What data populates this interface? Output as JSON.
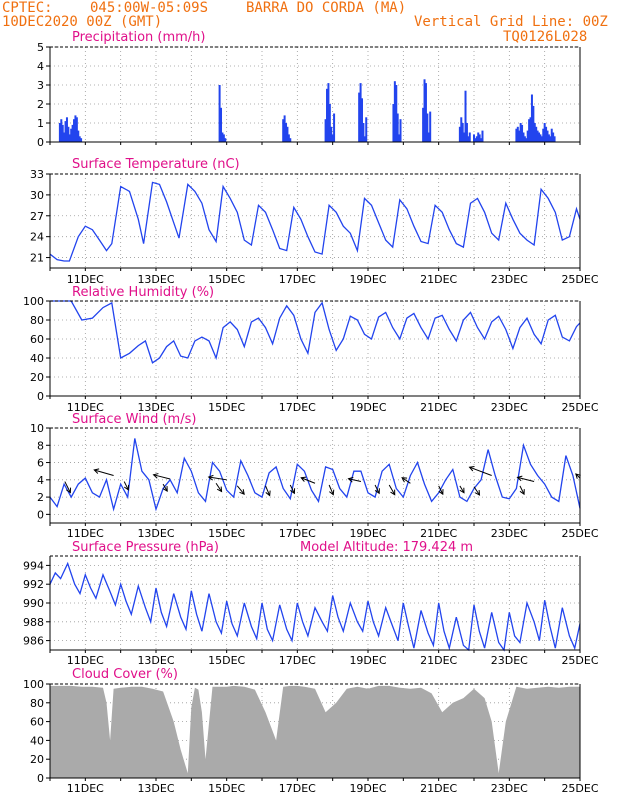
{
  "header": {
    "source": "CPTEC:",
    "coords": "045:00W-05:09S",
    "location": "BARRA DO CORDA (MA)",
    "date": "10DEC2020 00Z (GMT)",
    "gridline": "Vertical Grid Line: 00Z",
    "code": "TQ0126L028"
  },
  "colors": {
    "header": "#f07010",
    "title": "#e0108a",
    "series": "#2244ee",
    "cloud": "#aaaaaa",
    "wind_arrow": "#000000",
    "wind_start": "#f07010"
  },
  "chart_data": [
    {
      "type": "bar",
      "title": "Precipitation (mm/h)",
      "x_unit": "days since 10DEC2020 00Z",
      "xticks": [
        "11DEC",
        "13DEC",
        "15DEC",
        "17DEC",
        "19DEC",
        "21DEC",
        "23DEC",
        "25DEC"
      ],
      "ylim": [
        0,
        5
      ],
      "yticks": [
        0,
        1,
        2,
        3,
        4,
        5
      ],
      "grid": true,
      "x": [
        0.28,
        0.32,
        0.36,
        0.4,
        0.44,
        0.48,
        0.52,
        0.56,
        0.6,
        0.64,
        0.68,
        0.72,
        0.76,
        0.8,
        0.84,
        0.88,
        4.8,
        4.84,
        4.88,
        4.92,
        4.96,
        6.6,
        6.64,
        6.68,
        6.72,
        6.76,
        6.8,
        7.8,
        7.84,
        7.88,
        7.92,
        7.96,
        8.0,
        8.04,
        8.75,
        8.79,
        8.83,
        8.87,
        8.91,
        8.95,
        9.72,
        9.76,
        9.8,
        9.84,
        9.88,
        9.92,
        10.56,
        10.6,
        10.64,
        10.68,
        10.72,
        10.76,
        11.6,
        11.64,
        11.68,
        11.72,
        11.76,
        11.8,
        11.84,
        11.88,
        12.0,
        12.04,
        12.08,
        12.12,
        12.16,
        12.2,
        12.24,
        13.2,
        13.24,
        13.28,
        13.32,
        13.36,
        13.4,
        13.44,
        13.48,
        13.52,
        13.56,
        13.6,
        13.64,
        13.68,
        13.72,
        13.76,
        13.8,
        13.84,
        13.88,
        13.92,
        13.96,
        14.0,
        14.04,
        14.08,
        14.12,
        14.16,
        14.2,
        14.24,
        14.28
      ],
      "values": [
        1.0,
        1.2,
        0.9,
        0.5,
        1.1,
        1.3,
        0.8,
        0.4,
        0.7,
        0.9,
        1.2,
        1.4,
        1.3,
        0.6,
        0.3,
        0.2,
        3.0,
        1.8,
        0.5,
        0.4,
        0.2,
        1.2,
        1.4,
        1.0,
        0.8,
        0.4,
        0.2,
        1.2,
        2.8,
        3.1,
        2.0,
        0.8,
        0.4,
        1.5,
        2.6,
        3.1,
        2.3,
        1.0,
        0.3,
        1.3,
        2.0,
        3.2,
        3.0,
        1.5,
        0.4,
        1.2,
        1.8,
        3.3,
        3.1,
        1.5,
        0.5,
        1.6,
        0.8,
        1.3,
        1.0,
        0.5,
        2.7,
        1.0,
        0.3,
        0.5,
        0.4,
        0.2,
        0.3,
        0.5,
        0.4,
        0.2,
        0.6,
        0.7,
        0.8,
        0.6,
        1.0,
        0.9,
        0.5,
        0.3,
        0.2,
        0.6,
        1.2,
        1.3,
        2.5,
        1.9,
        1.0,
        0.8,
        0.6,
        0.5,
        0.4,
        0.3,
        0.7,
        1.0,
        0.8,
        0.6,
        0.4,
        0.3,
        0.7,
        0.5,
        0.3
      ]
    },
    {
      "type": "line",
      "title": "Surface Temperature (nC)",
      "x_unit": "days since 10DEC2020 00Z",
      "xticks": [
        "11DEC",
        "13DEC",
        "15DEC",
        "17DEC",
        "19DEC",
        "21DEC",
        "23DEC",
        "25DEC"
      ],
      "ylim": [
        19.5,
        33
      ],
      "yticks": [
        21,
        24,
        27,
        30,
        33
      ],
      "grid": true,
      "x": [
        0.0,
        0.2,
        0.4,
        0.55,
        0.8,
        1.0,
        1.2,
        1.4,
        1.6,
        1.75,
        2.0,
        2.25,
        2.5,
        2.65,
        2.9,
        3.1,
        3.3,
        3.5,
        3.65,
        3.9,
        4.1,
        4.3,
        4.5,
        4.7,
        4.9,
        5.1,
        5.3,
        5.5,
        5.7,
        5.9,
        6.1,
        6.3,
        6.5,
        6.7,
        6.9,
        7.1,
        7.3,
        7.5,
        7.7,
        7.9,
        8.1,
        8.3,
        8.5,
        8.7,
        8.9,
        9.1,
        9.3,
        9.5,
        9.7,
        9.9,
        10.1,
        10.3,
        10.5,
        10.7,
        10.9,
        11.1,
        11.3,
        11.5,
        11.7,
        11.9,
        12.1,
        12.3,
        12.5,
        12.7,
        12.9,
        13.1,
        13.3,
        13.5,
        13.7,
        13.9,
        14.1,
        14.3,
        14.5,
        14.7,
        14.9,
        15.0
      ],
      "values": [
        21.5,
        20.7,
        20.5,
        20.5,
        24.0,
        25.5,
        25.0,
        23.5,
        22.0,
        23.0,
        31.2,
        30.5,
        26.5,
        23.0,
        31.8,
        31.5,
        29.0,
        26.0,
        23.8,
        31.5,
        30.5,
        28.8,
        25.0,
        23.3,
        31.2,
        29.5,
        27.5,
        23.5,
        22.8,
        28.5,
        27.5,
        25.0,
        22.3,
        22.0,
        28.2,
        26.5,
        24.0,
        21.8,
        21.5,
        28.5,
        27.5,
        25.5,
        24.5,
        22.0,
        29.5,
        28.5,
        26.0,
        23.5,
        22.5,
        29.3,
        28.0,
        25.5,
        23.3,
        23.0,
        28.5,
        27.5,
        25.0,
        23.0,
        22.5,
        28.8,
        29.5,
        27.5,
        24.5,
        23.5,
        28.8,
        26.5,
        24.5,
        23.5,
        22.8,
        30.8,
        29.5,
        27.5,
        23.5,
        24.0,
        28.0,
        26.5
      ]
    },
    {
      "type": "line",
      "title": "Relative Humidity (%)",
      "x_unit": "days since 10DEC2020 00Z",
      "xticks": [
        "11DEC",
        "13DEC",
        "15DEC",
        "17DEC",
        "19DEC",
        "21DEC",
        "23DEC",
        "25DEC"
      ],
      "ylim": [
        0,
        100
      ],
      "yticks": [
        0,
        20,
        40,
        60,
        80,
        100
      ],
      "grid": true,
      "x": [
        0.0,
        0.3,
        0.6,
        0.9,
        1.2,
        1.5,
        1.75,
        2.0,
        2.25,
        2.5,
        2.7,
        2.9,
        3.1,
        3.3,
        3.5,
        3.7,
        3.9,
        4.1,
        4.3,
        4.5,
        4.7,
        4.9,
        5.1,
        5.3,
        5.5,
        5.7,
        5.9,
        6.1,
        6.3,
        6.5,
        6.7,
        6.9,
        7.1,
        7.3,
        7.5,
        7.7,
        7.9,
        8.1,
        8.3,
        8.5,
        8.7,
        8.9,
        9.1,
        9.3,
        9.5,
        9.7,
        9.9,
        10.1,
        10.3,
        10.5,
        10.7,
        10.9,
        11.1,
        11.3,
        11.5,
        11.7,
        11.9,
        12.1,
        12.3,
        12.5,
        12.7,
        12.9,
        13.1,
        13.3,
        13.5,
        13.7,
        13.9,
        14.1,
        14.3,
        14.5,
        14.7,
        14.9,
        15.0
      ],
      "values": [
        100,
        100,
        100,
        80,
        82,
        93,
        98,
        40,
        45,
        53,
        58,
        35,
        40,
        52,
        58,
        42,
        40,
        58,
        62,
        58,
        40,
        72,
        78,
        70,
        52,
        78,
        82,
        72,
        55,
        82,
        95,
        85,
        60,
        45,
        88,
        98,
        70,
        48,
        60,
        84,
        80,
        65,
        60,
        83,
        88,
        72,
        60,
        82,
        87,
        72,
        60,
        82,
        85,
        70,
        58,
        80,
        88,
        72,
        60,
        78,
        84,
        70,
        50,
        72,
        82,
        65,
        55,
        80,
        85,
        62,
        58,
        73,
        77
      ]
    },
    {
      "type": "line",
      "title": "Surface Wind (m/s)",
      "x_unit": "days since 10DEC2020 00Z",
      "xticks": [
        "11DEC",
        "13DEC",
        "15DEC",
        "17DEC",
        "19DEC",
        "21DEC",
        "23DEC",
        "25DEC"
      ],
      "ylim": [
        -1,
        10
      ],
      "yticks": [
        0,
        2,
        4,
        6,
        8,
        10
      ],
      "grid": true,
      "x": [
        0.0,
        0.2,
        0.4,
        0.6,
        0.8,
        1.0,
        1.2,
        1.4,
        1.6,
        1.8,
        2.0,
        2.2,
        2.4,
        2.6,
        2.8,
        3.0,
        3.2,
        3.4,
        3.6,
        3.8,
        4.0,
        4.2,
        4.4,
        4.6,
        4.8,
        5.0,
        5.2,
        5.4,
        5.6,
        5.8,
        6.0,
        6.2,
        6.4,
        6.6,
        6.8,
        7.0,
        7.2,
        7.4,
        7.6,
        7.8,
        8.0,
        8.2,
        8.4,
        8.6,
        8.8,
        9.0,
        9.2,
        9.4,
        9.6,
        9.8,
        10.0,
        10.2,
        10.4,
        10.6,
        10.8,
        11.0,
        11.2,
        11.4,
        11.6,
        11.8,
        12.0,
        12.2,
        12.4,
        12.6,
        12.8,
        13.0,
        13.2,
        13.4,
        13.6,
        13.8,
        14.0,
        14.2,
        14.4,
        14.6,
        14.8,
        15.0
      ],
      "values": [
        2.0,
        0.9,
        3.5,
        2.0,
        3.5,
        4.2,
        2.5,
        2.0,
        4.0,
        0.6,
        3.5,
        2.0,
        8.8,
        5.0,
        4.0,
        0.6,
        3.0,
        4.0,
        2.5,
        6.5,
        5.0,
        2.5,
        1.5,
        6.0,
        5.0,
        2.8,
        2.0,
        6.2,
        4.5,
        2.5,
        2.0,
        4.8,
        5.5,
        3.0,
        1.8,
        5.8,
        5.0,
        2.8,
        1.5,
        5.5,
        5.2,
        3.0,
        2.0,
        5.0,
        5.0,
        2.5,
        2.0,
        5.0,
        5.8,
        3.0,
        2.0,
        4.5,
        6.0,
        3.5,
        1.5,
        2.5,
        4.0,
        5.2,
        2.0,
        1.5,
        3.0,
        4.0,
        7.5,
        4.5,
        2.0,
        1.8,
        3.0,
        8.0,
        5.8,
        4.5,
        3.5,
        2.0,
        1.5,
        6.8,
        4.5,
        0.7
      ],
      "arrows": [
        {
          "x": 0.42,
          "y": 3.8,
          "u": 0.4,
          "v": -0.8
        },
        {
          "x": 1.8,
          "y": 4.5,
          "u": -1.4,
          "v": 0.4
        },
        {
          "x": 2.1,
          "y": 3.8,
          "u": 0.3,
          "v": -0.6
        },
        {
          "x": 3.4,
          "y": 4.1,
          "u": -1.2,
          "v": 0.3
        },
        {
          "x": 3.2,
          "y": 3.5,
          "u": 0.3,
          "v": -0.5
        },
        {
          "x": 5.0,
          "y": 4.0,
          "u": -1.3,
          "v": 0.2
        },
        {
          "x": 4.7,
          "y": 3.6,
          "u": 0.4,
          "v": -0.6
        },
        {
          "x": 5.3,
          "y": 3.3,
          "u": 0.5,
          "v": -0.6
        },
        {
          "x": 6.1,
          "y": 3.3,
          "u": 0.3,
          "v": -0.7
        },
        {
          "x": 6.8,
          "y": 3.4,
          "u": 0.3,
          "v": -0.6
        },
        {
          "x": 7.5,
          "y": 3.6,
          "u": -1.0,
          "v": 0.4
        },
        {
          "x": 7.9,
          "y": 3.4,
          "u": 0.3,
          "v": -0.7
        },
        {
          "x": 8.8,
          "y": 3.8,
          "u": -0.9,
          "v": 0.2
        },
        {
          "x": 9.2,
          "y": 3.4,
          "u": 0.3,
          "v": -0.6
        },
        {
          "x": 9.6,
          "y": 3.4,
          "u": 0.4,
          "v": -0.7
        },
        {
          "x": 10.2,
          "y": 3.6,
          "u": -0.6,
          "v": 0.4
        },
        {
          "x": 11.0,
          "y": 3.3,
          "u": 0.3,
          "v": -0.6
        },
        {
          "x": 11.6,
          "y": 3.3,
          "u": 0.3,
          "v": -0.5
        },
        {
          "x": 12.5,
          "y": 4.5,
          "u": -1.6,
          "v": 0.6
        },
        {
          "x": 12.0,
          "y": 3.2,
          "u": 0.4,
          "v": -0.6
        },
        {
          "x": 13.7,
          "y": 3.8,
          "u": -1.2,
          "v": 0.3
        },
        {
          "x": 13.3,
          "y": 3.3,
          "u": 0.3,
          "v": -0.6
        },
        {
          "x": 15.0,
          "y": 4.2,
          "u": -0.3,
          "v": 0.3
        }
      ]
    },
    {
      "type": "line",
      "title": "Surface Pressure (hPa)",
      "annotation": "Model Altitude: 179.424 m",
      "x_unit": "days since 10DEC2020 00Z",
      "xticks": [
        "11DEC",
        "13DEC",
        "15DEC",
        "17DEC",
        "19DEC",
        "21DEC",
        "23DEC",
        "25DEC"
      ],
      "ylim": [
        985,
        995
      ],
      "yticks": [
        986,
        988,
        990,
        992,
        994
      ],
      "grid": true,
      "x": [
        0.0,
        0.15,
        0.3,
        0.5,
        0.7,
        0.85,
        1.0,
        1.15,
        1.3,
        1.5,
        1.7,
        1.85,
        2.0,
        2.15,
        2.3,
        2.5,
        2.7,
        2.85,
        3.0,
        3.15,
        3.3,
        3.5,
        3.7,
        3.85,
        4.0,
        4.15,
        4.3,
        4.5,
        4.7,
        4.85,
        5.0,
        5.15,
        5.3,
        5.5,
        5.7,
        5.85,
        6.0,
        6.15,
        6.3,
        6.5,
        6.7,
        6.85,
        7.0,
        7.15,
        7.3,
        7.5,
        7.7,
        7.85,
        8.0,
        8.15,
        8.3,
        8.5,
        8.7,
        8.85,
        9.0,
        9.15,
        9.3,
        9.5,
        9.7,
        9.85,
        10.0,
        10.15,
        10.3,
        10.5,
        10.7,
        10.85,
        11.0,
        11.15,
        11.3,
        11.5,
        11.7,
        11.85,
        12.0,
        12.15,
        12.3,
        12.5,
        12.7,
        12.85,
        13.0,
        13.15,
        13.3,
        13.5,
        13.7,
        13.85,
        14.0,
        14.15,
        14.3,
        14.5,
        14.7,
        14.85,
        15.0
      ],
      "values": [
        992.0,
        993.2,
        992.6,
        994.2,
        992.0,
        991.0,
        993.0,
        991.6,
        990.5,
        993.0,
        991.2,
        989.8,
        992.0,
        990.2,
        988.8,
        991.8,
        989.5,
        988.0,
        991.6,
        989.0,
        987.5,
        991.0,
        988.5,
        987.2,
        991.3,
        988.8,
        987.0,
        991.0,
        988.0,
        986.8,
        990.2,
        987.8,
        986.5,
        990.0,
        987.5,
        986.2,
        990.0,
        987.2,
        986.0,
        989.8,
        987.2,
        986.0,
        990.0,
        988.0,
        986.5,
        989.5,
        988.0,
        987.0,
        990.8,
        988.5,
        987.0,
        990.0,
        988.0,
        987.0,
        990.2,
        988.0,
        986.5,
        989.5,
        987.5,
        986.0,
        990.0,
        987.5,
        985.2,
        989.2,
        986.8,
        985.5,
        990.0,
        987.0,
        985.2,
        988.5,
        985.5,
        984.6,
        989.8,
        987.0,
        985.2,
        989.0,
        985.8,
        985.0,
        989.0,
        986.5,
        985.8,
        990.0,
        988.0,
        986.0,
        990.3,
        987.5,
        985.2,
        989.5,
        986.5,
        985.2,
        987.8
      ]
    },
    {
      "type": "area",
      "title": "Cloud Cover (%)",
      "x_unit": "days since 10DEC2020 00Z",
      "xticks": [
        "11DEC",
        "13DEC",
        "15DEC",
        "17DEC",
        "19DEC",
        "21DEC",
        "23DEC",
        "25DEC"
      ],
      "ylim": [
        0,
        100
      ],
      "yticks": [
        0,
        20,
        40,
        60,
        80,
        100
      ],
      "grid": true,
      "x": [
        0.0,
        0.3,
        0.6,
        0.9,
        1.2,
        1.5,
        1.6,
        1.7,
        1.8,
        2.0,
        2.3,
        2.6,
        2.9,
        3.2,
        3.5,
        3.7,
        3.9,
        4.0,
        4.1,
        4.2,
        4.3,
        4.4,
        4.6,
        4.8,
        5.0,
        5.2,
        5.5,
        5.8,
        6.1,
        6.4,
        6.6,
        6.8,
        7.0,
        7.2,
        7.5,
        7.8,
        8.1,
        8.4,
        8.7,
        9.0,
        9.3,
        9.6,
        9.9,
        10.2,
        10.5,
        10.8,
        11.1,
        11.4,
        11.7,
        12.0,
        12.3,
        12.5,
        12.7,
        12.9,
        13.2,
        13.5,
        13.8,
        14.1,
        14.4,
        14.7,
        15.0
      ],
      "values": [
        98,
        98,
        98,
        97,
        97,
        96,
        80,
        40,
        95,
        96,
        97,
        97,
        95,
        92,
        60,
        30,
        5,
        75,
        96,
        94,
        70,
        20,
        97,
        97,
        97,
        98,
        97,
        94,
        70,
        40,
        97,
        98,
        98,
        97,
        95,
        70,
        80,
        95,
        97,
        95,
        98,
        98,
        96,
        95,
        96,
        90,
        70,
        80,
        85,
        95,
        85,
        60,
        5,
        60,
        97,
        95,
        96,
        97,
        96,
        97,
        97
      ]
    }
  ]
}
